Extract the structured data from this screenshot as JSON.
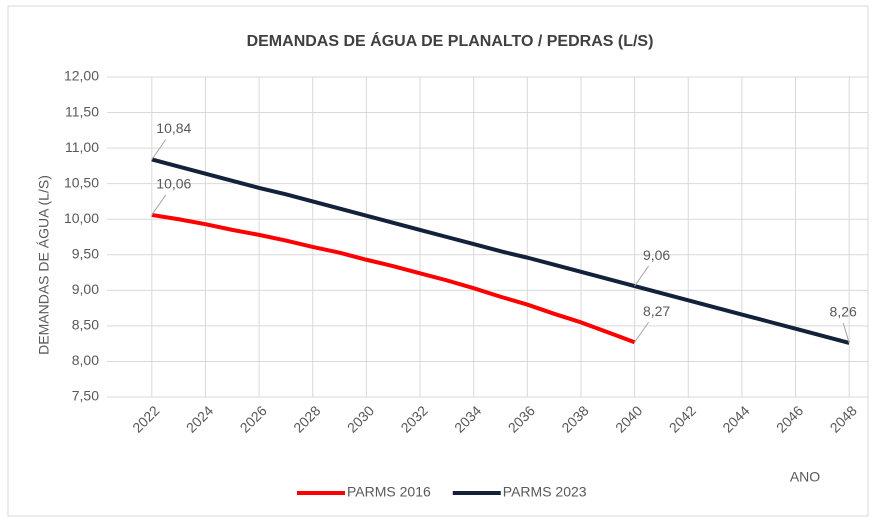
{
  "chart_data": {
    "type": "line",
    "title": "DEMANDAS DE ÁGUA DE PLANALTO / PEDRAS (L/S)",
    "x_label": "ANO",
    "y_label": "DEMANDAS DE ÁGUA (L/S)",
    "x": [
      2022,
      2023,
      2024,
      2025,
      2026,
      2027,
      2028,
      2029,
      2030,
      2031,
      2032,
      2033,
      2034,
      2035,
      2036,
      2037,
      2038,
      2039,
      2040,
      2041,
      2042,
      2043,
      2044,
      2045,
      2046,
      2047,
      2048
    ],
    "xlim": [
      2021,
      2049
    ],
    "xticks": [
      2022,
      2024,
      2026,
      2028,
      2030,
      2032,
      2034,
      2036,
      2038,
      2040,
      2042,
      2044,
      2046,
      2048
    ],
    "ylim": [
      7.5,
      12
    ],
    "yticks": [
      {
        "value": 7.5,
        "label": "7,50"
      },
      {
        "value": 8,
        "label": "8,00"
      },
      {
        "value": 8.5,
        "label": "8,50"
      },
      {
        "value": 9,
        "label": "9,00"
      },
      {
        "value": 9.5,
        "label": "9,50"
      },
      {
        "value": 10,
        "label": "10,00"
      },
      {
        "value": 10.5,
        "label": "10,50"
      },
      {
        "value": 11,
        "label": "11,00"
      },
      {
        "value": 11.5,
        "label": "11,50"
      },
      {
        "value": 12,
        "label": "12,00"
      }
    ],
    "grid": true,
    "legend": "bottom",
    "series": [
      {
        "name": "PARMS 2016",
        "color": "#ff0000",
        "values": [
          10.06,
          10.0,
          9.93,
          9.85,
          9.78,
          9.7,
          9.61,
          9.53,
          9.43,
          9.34,
          9.24,
          9.14,
          9.03,
          8.91,
          8.8,
          8.67,
          8.55,
          8.41,
          8.27,
          null,
          null,
          null,
          null,
          null,
          null,
          null,
          null
        ],
        "value_labels": [
          "10,06",
          null,
          null,
          null,
          null,
          null,
          null,
          null,
          null,
          null,
          null,
          null,
          null,
          null,
          null,
          null,
          null,
          null,
          "8,27",
          null,
          null,
          null,
          null,
          null,
          null,
          null,
          null
        ]
      },
      {
        "name": "PARMS 2023",
        "color": "#13213b",
        "values": [
          10.84,
          10.74,
          10.64,
          10.54,
          10.44,
          10.35,
          10.25,
          10.15,
          10.05,
          9.95,
          9.85,
          9.75,
          9.65,
          9.55,
          9.46,
          9.36,
          9.26,
          9.16,
          9.06,
          8.96,
          8.86,
          8.76,
          8.66,
          8.56,
          8.46,
          8.36,
          8.26
        ],
        "value_labels": [
          "10,84",
          null,
          null,
          null,
          null,
          null,
          null,
          null,
          null,
          null,
          null,
          null,
          null,
          null,
          null,
          null,
          null,
          null,
          "9,06",
          null,
          null,
          null,
          null,
          null,
          null,
          null,
          "8,26"
        ]
      }
    ]
  }
}
